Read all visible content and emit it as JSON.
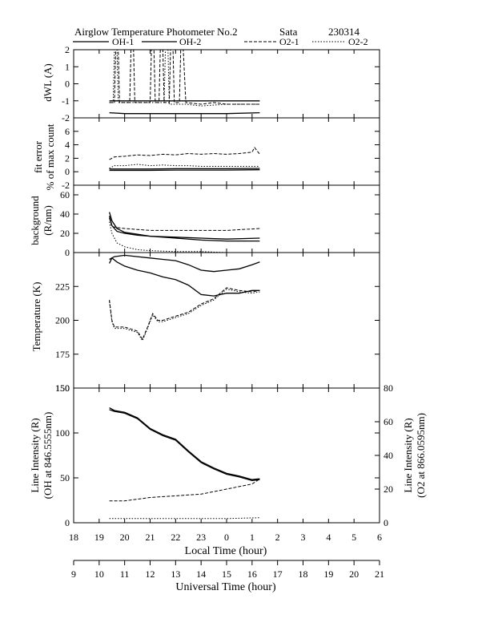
{
  "header": {
    "title": "Airglow Temperature Photometer No.2",
    "site": "Sata",
    "date": "230314"
  },
  "legend": [
    {
      "name": "OH-1",
      "style": "solid"
    },
    {
      "name": "OH-2",
      "style": "solid"
    },
    {
      "name": "O2-1",
      "style": "dashed"
    },
    {
      "name": "O2-2",
      "style": "dotted"
    }
  ],
  "x_axes": {
    "local_label": "Local Time (hour)",
    "local_ticks": [
      "18",
      "19",
      "20",
      "21",
      "22",
      "23",
      "0",
      "1",
      "2",
      "3",
      "4",
      "5",
      "6"
    ],
    "universal_label": "Universal Time (hour)",
    "universal_ticks": [
      "9",
      "10",
      "11",
      "12",
      "13",
      "14",
      "15",
      "16",
      "17",
      "18",
      "19",
      "20",
      "21"
    ]
  },
  "chart_data": [
    {
      "type": "line",
      "name": "dwl",
      "ylabel": "dWL (A)",
      "ylim": [
        -2,
        2
      ],
      "yticks": [
        "-2",
        "-1",
        "0",
        "1",
        "2"
      ],
      "xlim": [
        18,
        30
      ],
      "series": [
        {
          "name": "OH-1",
          "style": "solid",
          "x": [
            19.4,
            20,
            21,
            22,
            23,
            24,
            25.3
          ],
          "y": [
            -1.0,
            -1.0,
            -1.0,
            -1.0,
            -1.0,
            -1.0,
            -1.0
          ]
        },
        {
          "name": "OH-2",
          "style": "solid",
          "x": [
            19.4,
            20,
            21,
            22,
            23,
            24,
            25.3
          ],
          "y": [
            -1.7,
            -1.75,
            -1.75,
            -1.75,
            -1.75,
            -1.75,
            -1.7
          ]
        },
        {
          "name": "O2-1",
          "style": "dashed",
          "x": [
            19.4,
            19.6,
            19.65,
            19.75,
            19.8,
            20.2,
            20.25,
            20.35,
            20.4,
            21.0,
            21.05,
            21.15,
            21.2,
            21.35,
            21.4,
            21.5,
            21.55,
            21.75,
            21.8,
            21.9,
            21.95,
            22.15,
            22.2,
            22.3,
            22.4,
            23.0,
            23.5,
            24.0,
            25.3
          ],
          "y": [
            -1.1,
            -1.1,
            2.0,
            2.0,
            -1.1,
            -1.1,
            2.0,
            2.0,
            -1.1,
            -1.1,
            2.0,
            2.0,
            -1.1,
            -1.1,
            2.0,
            2.0,
            -1.1,
            -1.1,
            2.0,
            2.0,
            -1.1,
            -1.1,
            2.0,
            2.0,
            -1.1,
            -1.2,
            -1.1,
            -1.2,
            -1.2
          ]
        },
        {
          "name": "O2-2",
          "style": "dotted",
          "x": [
            19.4,
            19.55,
            19.6,
            19.7,
            19.75,
            21.55,
            21.6,
            21.7,
            21.75,
            22.4,
            23.0,
            24.0,
            25.3
          ],
          "y": [
            -1.1,
            -1.1,
            2.0,
            2.0,
            -1.1,
            -1.1,
            2.0,
            2.0,
            -1.2,
            -1.2,
            -1.3,
            -1.2,
            -1.2
          ]
        }
      ]
    },
    {
      "type": "line",
      "name": "fit-error",
      "ylabel": "fit error",
      "ylabel2": "% of max count",
      "ylim": [
        -2,
        8
      ],
      "yticks": [
        "-2",
        "0",
        "2",
        "4",
        "6"
      ],
      "xlim": [
        18,
        30
      ],
      "series": [
        {
          "name": "OH-1",
          "style": "solid",
          "x": [
            19.4,
            20,
            21,
            22,
            23,
            24,
            25.3
          ],
          "y": [
            0.4,
            0.4,
            0.4,
            0.45,
            0.45,
            0.45,
            0.5
          ]
        },
        {
          "name": "OH-2",
          "style": "solid",
          "x": [
            19.4,
            20,
            21,
            22,
            23,
            24,
            25.3
          ],
          "y": [
            0.2,
            0.2,
            0.2,
            0.25,
            0.25,
            0.25,
            0.3
          ]
        },
        {
          "name": "O2-1",
          "style": "dashed",
          "x": [
            19.4,
            19.6,
            20,
            20.5,
            21,
            21.5,
            22,
            22.5,
            23,
            23.5,
            24,
            24.5,
            25.0,
            25.1,
            25.3
          ],
          "y": [
            1.8,
            2.2,
            2.3,
            2.5,
            2.4,
            2.6,
            2.5,
            2.7,
            2.6,
            2.7,
            2.6,
            2.7,
            2.9,
            3.6,
            2.6
          ]
        },
        {
          "name": "O2-2",
          "style": "dotted",
          "x": [
            19.4,
            19.6,
            20,
            20.5,
            21,
            21.5,
            22,
            22.5,
            23,
            24,
            25.3
          ],
          "y": [
            0.5,
            0.9,
            0.9,
            1.1,
            0.9,
            1.0,
            0.9,
            0.9,
            0.8,
            0.8,
            0.8
          ]
        }
      ]
    },
    {
      "type": "line",
      "name": "background",
      "ylabel": "background",
      "ylabel2": "(R/nm)",
      "ylim": [
        0,
        70
      ],
      "yticks": [
        "0",
        "20",
        "40",
        "60"
      ],
      "xlim": [
        18,
        30
      ],
      "series": [
        {
          "name": "OH-1",
          "style": "solid",
          "x": [
            19.4,
            19.5,
            19.7,
            20,
            20.5,
            21,
            22,
            23,
            24,
            25.3
          ],
          "y": [
            42,
            33,
            25,
            21,
            19,
            17,
            15,
            13,
            12,
            12
          ]
        },
        {
          "name": "OH-2",
          "style": "solid",
          "x": [
            19.4,
            19.5,
            19.7,
            20,
            20.5,
            21,
            22,
            23,
            24,
            25.3
          ],
          "y": [
            38,
            28,
            22,
            20,
            18,
            17,
            16,
            15,
            14,
            15
          ]
        },
        {
          "name": "O2-1",
          "style": "dashed",
          "x": [
            19.4,
            19.5,
            19.7,
            20,
            20.5,
            21,
            22,
            23,
            24,
            25.3
          ],
          "y": [
            36,
            27,
            26,
            25,
            24,
            23,
            23,
            23,
            23,
            25
          ]
        },
        {
          "name": "O2-2",
          "style": "dotted",
          "x": [
            19.4,
            19.5,
            19.7,
            20,
            20.5,
            21,
            22,
            23,
            24,
            24.5,
            25.3
          ],
          "y": [
            32,
            20,
            10,
            6,
            3,
            2,
            1,
            1,
            0,
            0,
            0
          ]
        }
      ]
    },
    {
      "type": "line",
      "name": "temperature",
      "ylabel": "Temperature (K)",
      "ylim": [
        150,
        250
      ],
      "yticks": [
        "150",
        "175",
        "200",
        "225"
      ],
      "xlim": [
        18,
        30
      ],
      "series": [
        {
          "name": "OH-1",
          "style": "solid",
          "x": [
            19.4,
            19.5,
            19.7,
            20,
            20.5,
            21,
            21.5,
            22,
            22.5,
            23,
            23.5,
            24,
            24.5,
            25,
            25.3
          ],
          "y": [
            242,
            246,
            243,
            240,
            237,
            235,
            232,
            230,
            226,
            219,
            218,
            220,
            220,
            222,
            222
          ]
        },
        {
          "name": "OH-2",
          "style": "solid",
          "x": [
            19.4,
            19.6,
            20,
            20.5,
            21,
            21.5,
            22,
            22.5,
            23,
            23.5,
            24,
            24.5,
            25,
            25.3
          ],
          "y": [
            245,
            247,
            248,
            247,
            246,
            245,
            244,
            241,
            237,
            236,
            237,
            238,
            241,
            243
          ]
        },
        {
          "name": "O2-1",
          "style": "dashed",
          "x": [
            19.4,
            19.5,
            19.6,
            20,
            20.5,
            20.7,
            20.9,
            21.1,
            21.3,
            21.5,
            22,
            22.5,
            23,
            23.5,
            24,
            24.5,
            25,
            25.3
          ],
          "y": [
            215,
            200,
            195,
            195,
            192,
            186,
            195,
            205,
            200,
            200,
            203,
            206,
            212,
            216,
            224,
            222,
            221,
            222
          ]
        },
        {
          "name": "O2-2",
          "style": "dotted",
          "x": [
            19.4,
            19.5,
            19.6,
            20,
            20.5,
            20.7,
            20.9,
            21.1,
            21.3,
            21.5,
            22,
            22.5,
            23,
            23.5,
            24,
            24.5,
            25,
            25.3
          ],
          "y": [
            214,
            199,
            194,
            194,
            191,
            185,
            194,
            204,
            199,
            199,
            202,
            205,
            211,
            215,
            223,
            221,
            220,
            221
          ]
        }
      ]
    },
    {
      "type": "line",
      "name": "line-intensity",
      "ylabel": "Line Intensity (R)",
      "ylabel2": "(OH at 846.5555nm)",
      "ylim": [
        0,
        150
      ],
      "yticks": [
        "0",
        "50",
        "100",
        "150"
      ],
      "y2label": "Line Intensity (R)",
      "y2label2": "(O2 at 866.0595nm)",
      "y2lim": [
        0,
        80
      ],
      "y2ticks": [
        "0",
        "20",
        "40",
        "60",
        "80"
      ],
      "xlim": [
        18,
        30
      ],
      "series": [
        {
          "name": "OH-1",
          "style": "solid",
          "axis": "left",
          "x": [
            19.4,
            19.6,
            20,
            20.5,
            21,
            21.5,
            22,
            22.5,
            23,
            23.5,
            24,
            24.5,
            25,
            25.3
          ],
          "y": [
            126,
            124,
            122,
            116,
            104,
            97,
            92,
            79,
            67,
            60,
            54,
            51,
            47,
            48
          ]
        },
        {
          "name": "OH-2",
          "style": "solid",
          "axis": "left",
          "x": [
            19.4,
            19.6,
            20,
            20.5,
            21,
            21.5,
            22,
            22.5,
            23,
            23.5,
            24,
            24.5,
            25,
            25.3
          ],
          "y": [
            128,
            125,
            123,
            117,
            105,
            98,
            93,
            80,
            68,
            61,
            55,
            52,
            48,
            49
          ]
        },
        {
          "name": "O2-1",
          "style": "dashed",
          "axis": "right",
          "x": [
            19.4,
            20,
            21,
            22,
            23,
            24,
            25,
            25.3
          ],
          "y": [
            13,
            13,
            15,
            16,
            17,
            20,
            23,
            26
          ]
        },
        {
          "name": "O2-2",
          "style": "dotted",
          "axis": "right",
          "x": [
            19.4,
            20,
            21,
            22,
            23,
            24,
            25.3
          ],
          "y": [
            2.5,
            2.5,
            2.5,
            2.5,
            2.5,
            2.5,
            3
          ]
        }
      ]
    }
  ]
}
